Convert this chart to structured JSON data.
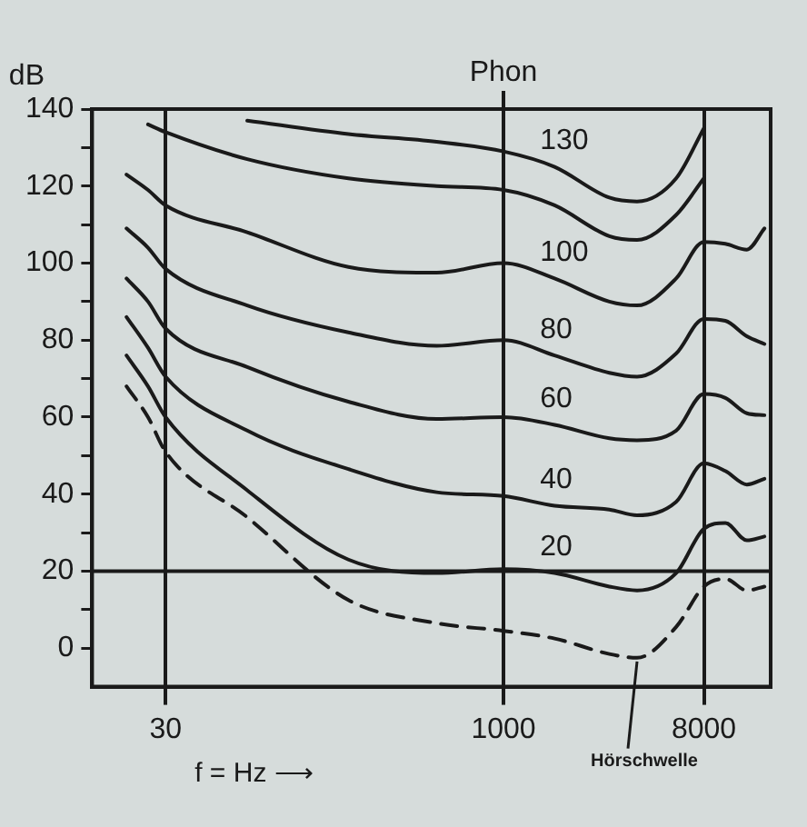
{
  "chart_data": {
    "type": "line",
    "xlabel": "f = Hz ⟶",
    "ylabel": "dB",
    "log": "x",
    "grid": "x",
    "legend": false,
    "marker": "none",
    "x": [
      20,
      25,
      30,
      70,
      200,
      500,
      1000,
      1700,
      3000,
      4000,
      6000,
      8000,
      10000,
      12500,
      15000
    ],
    "series": [
      {
        "name": "130",
        "color": "#1a1a1a",
        "values": [
          null,
          null,
          null,
          137,
          133.5,
          131.5,
          129,
          125,
          117,
          116,
          122,
          135,
          null,
          null,
          null
        ]
      },
      {
        "color": "#1a1a1a",
        "values": [
          null,
          136,
          134,
          127,
          122,
          120,
          119,
          115,
          107,
          106,
          112.5,
          122,
          null,
          null,
          null
        ]
      },
      {
        "name": "100",
        "color": "#1a1a1a",
        "values": [
          123,
          119,
          115,
          108,
          99,
          97.5,
          100,
          96,
          90,
          89,
          96,
          105.5,
          105,
          103.5,
          109
        ]
      },
      {
        "name": "80",
        "color": "#1a1a1a",
        "values": [
          109,
          104,
          98.5,
          89,
          82,
          78.5,
          80,
          76,
          71.5,
          70.5,
          76.5,
          85.5,
          85,
          81,
          79
        ]
      },
      {
        "name": "60",
        "color": "#1a1a1a",
        "values": [
          96,
          90,
          83,
          73,
          64,
          59.5,
          60,
          58,
          54.5,
          54,
          56.5,
          66,
          65,
          61,
          60.5
        ]
      },
      {
        "name": "40",
        "color": "#1a1a1a",
        "values": [
          86,
          78,
          70.5,
          56.5,
          46.5,
          40.5,
          39.5,
          37,
          36,
          34.5,
          38,
          48,
          46,
          42.5,
          44
        ]
      },
      {
        "name": "20",
        "color": "#1a1a1a",
        "values": [
          76,
          68,
          60,
          41,
          23,
          19.5,
          20.5,
          19.5,
          16,
          15,
          19.5,
          31,
          32.5,
          28,
          29
        ]
      },
      {
        "color": "#1a1a1a",
        "line_style": "dashed",
        "values": [
          68,
          60,
          51,
          34,
          12.5,
          6.5,
          4.5,
          2.5,
          -1.5,
          -2.5,
          5.5,
          16,
          18,
          15,
          16
        ]
      }
    ],
    "xlim": [
      14,
      16000
    ],
    "xticks": [
      30,
      1000,
      8000
    ],
    "ylim": [
      -10,
      140
    ],
    "yticks": [
      0,
      {
        "value": 10,
        "label": null
      },
      20,
      {
        "value": 30,
        "label": null
      },
      40,
      {
        "value": 50,
        "label": null
      },
      60,
      {
        "value": 70,
        "label": null
      },
      80,
      {
        "value": 90,
        "label": null
      },
      100,
      {
        "value": 110,
        "label": null
      },
      120,
      {
        "value": 130,
        "label": null
      },
      140
    ],
    "ref_lines": [
      {
        "axis": "y",
        "value": 20
      }
    ],
    "annotations": [
      "Phon",
      {
        "text": "Hörschwelle",
        "x": 4000,
        "y": -2.5
      }
    ]
  }
}
